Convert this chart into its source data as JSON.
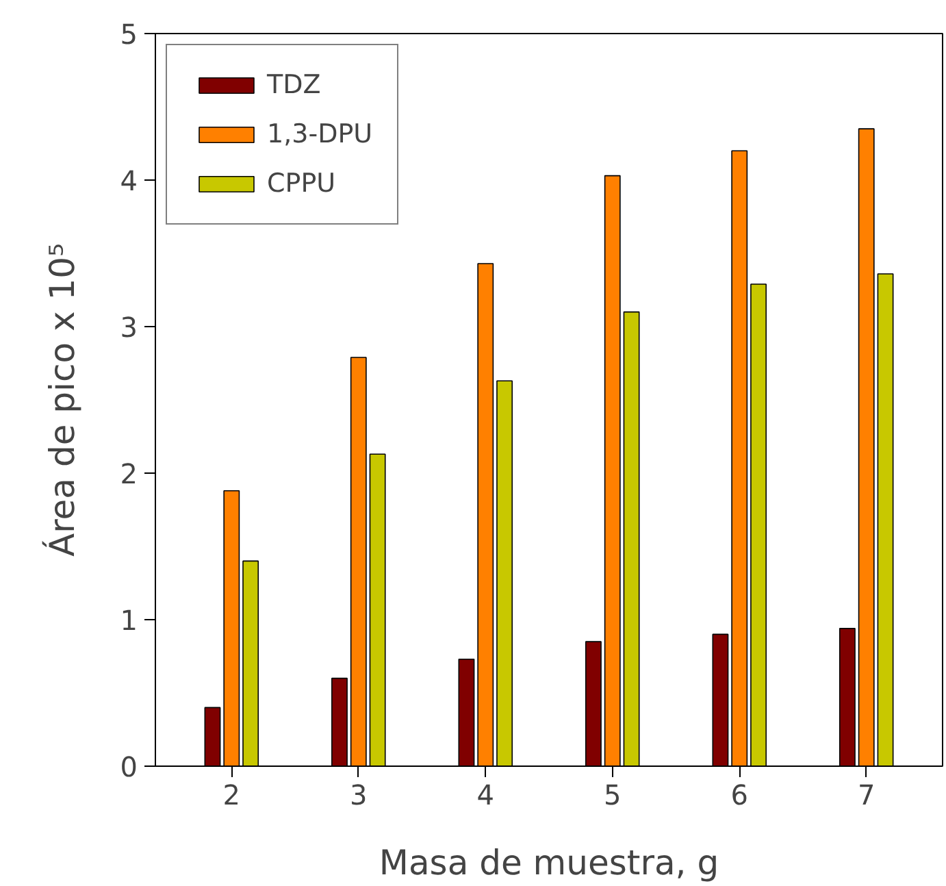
{
  "chart_data": {
    "type": "bar",
    "xlabel": "Masa de muestra, g",
    "ylabel": "Área de pico x 10⁵",
    "categories": [
      "2",
      "3",
      "4",
      "5",
      "6",
      "7"
    ],
    "series": [
      {
        "name": "TDZ",
        "color": "#800000",
        "values": [
          0.4,
          0.6,
          0.73,
          0.85,
          0.9,
          0.94
        ]
      },
      {
        "name": "1,3-DPU",
        "color": "#ff8000",
        "values": [
          1.88,
          2.79,
          3.43,
          4.03,
          4.2,
          4.35
        ]
      },
      {
        "name": "CPPU",
        "color": "#c8c800",
        "values": [
          1.4,
          2.13,
          2.63,
          3.1,
          3.29,
          3.36
        ]
      }
    ],
    "ylim": [
      0,
      5
    ],
    "yticks": [
      0,
      1,
      2,
      3,
      4,
      5
    ],
    "grid": false,
    "legend": "top left"
  }
}
